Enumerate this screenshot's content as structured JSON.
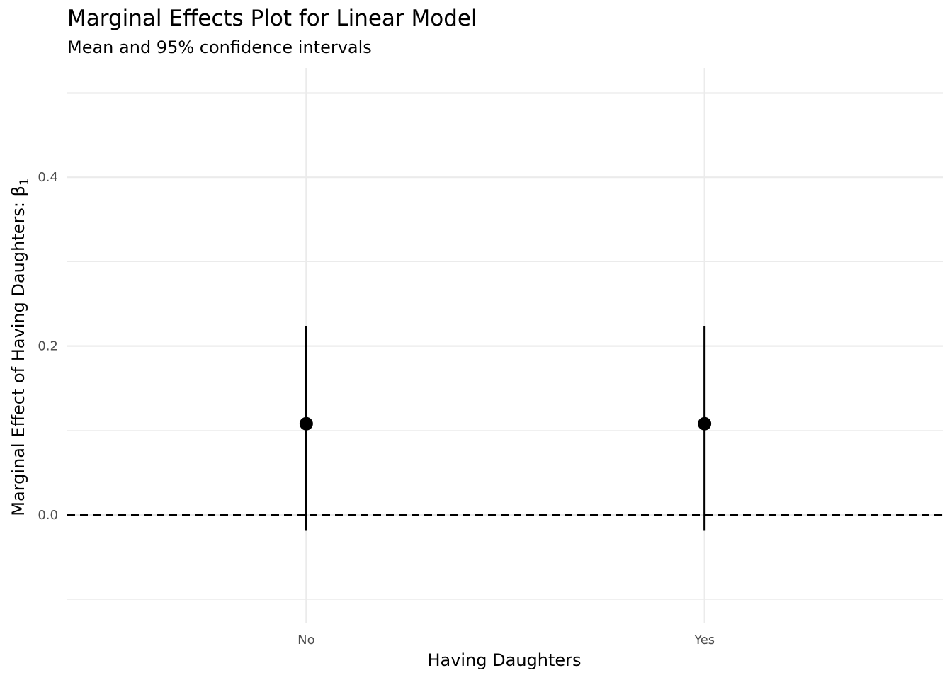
{
  "chart_data": {
    "type": "scatter",
    "title": "Marginal Effects Plot for Linear Model",
    "subtitle": "Mean and 95% confidence intervals",
    "xlabel": "Having Daughters",
    "ylabel": "Marginal Effect of Having Daughters: β",
    "ylabel_subscript": "1",
    "categories": [
      "No",
      "Yes"
    ],
    "series": [
      {
        "values": [
          0.108,
          0.108
        ],
        "lower": [
          -0.018,
          -0.018
        ],
        "upper": [
          0.224,
          0.224
        ]
      }
    ],
    "ylim": [
      -0.1,
      0.5
    ],
    "yticks": [
      0.0,
      0.2,
      0.4
    ],
    "ytick_labels": [
      "0.0",
      "0.2",
      "0.4"
    ],
    "reference_line": {
      "y": 0,
      "style": "dashed"
    },
    "grid": true,
    "legend": "none",
    "colors": {
      "point": "#000000",
      "grid": "#ebebeb",
      "reference": "#000000"
    }
  }
}
